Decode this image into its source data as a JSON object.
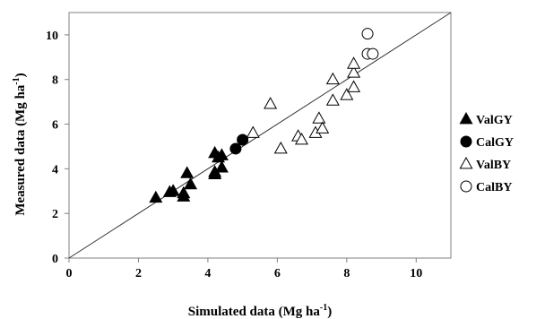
{
  "chart_data": {
    "type": "scatter",
    "xlabel": {
      "main": "Simulated data (Mg ha",
      "sup": "-1",
      "end": ")"
    },
    "ylabel": {
      "main": "Measured data (Mg ha",
      "sup": "-1",
      "end": ")"
    },
    "xlim": [
      0,
      11
    ],
    "ylim": [
      0,
      11
    ],
    "xticks": [
      0,
      2,
      4,
      6,
      8,
      10
    ],
    "yticks": [
      0,
      2,
      4,
      6,
      8,
      10
    ],
    "grid": false,
    "reference_line": "1:1",
    "legend_position": "right",
    "series": [
      {
        "name": "ValGY",
        "marker": "filled-triangle",
        "points": [
          [
            2.5,
            2.7
          ],
          [
            2.9,
            2.95
          ],
          [
            3.0,
            3.0
          ],
          [
            3.3,
            2.75
          ],
          [
            3.3,
            2.9
          ],
          [
            3.4,
            3.8
          ],
          [
            3.5,
            3.3
          ],
          [
            4.2,
            3.75
          ],
          [
            4.2,
            3.85
          ],
          [
            4.3,
            4.5
          ],
          [
            4.2,
            4.7
          ],
          [
            4.4,
            4.6
          ],
          [
            4.4,
            4.05
          ]
        ]
      },
      {
        "name": "CalGY",
        "marker": "filled-circle",
        "points": [
          [
            4.8,
            4.9
          ],
          [
            5.0,
            5.3
          ]
        ]
      },
      {
        "name": "ValBY",
        "marker": "open-triangle",
        "points": [
          [
            5.3,
            5.6
          ],
          [
            5.8,
            6.9
          ],
          [
            6.1,
            4.9
          ],
          [
            6.6,
            5.45
          ],
          [
            6.7,
            5.3
          ],
          [
            7.1,
            5.6
          ],
          [
            7.2,
            6.25
          ],
          [
            7.3,
            5.8
          ],
          [
            7.6,
            7.05
          ],
          [
            7.6,
            8.0
          ],
          [
            8.0,
            7.3
          ],
          [
            8.2,
            7.65
          ],
          [
            8.2,
            8.3
          ],
          [
            8.2,
            8.7
          ]
        ]
      },
      {
        "name": "CalBY",
        "marker": "open-circle",
        "points": [
          [
            8.6,
            10.05
          ],
          [
            8.6,
            9.15
          ],
          [
            8.75,
            9.15
          ]
        ]
      }
    ]
  }
}
